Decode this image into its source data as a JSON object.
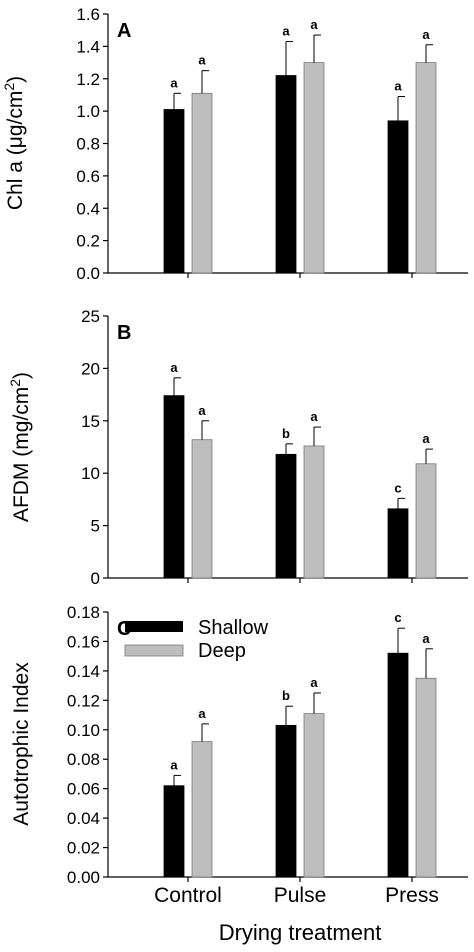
{
  "colors": {
    "shallow": "#000000",
    "deep": "#bdbdbd",
    "axis": "#000000"
  },
  "legend": {
    "placement": "top-left",
    "entries": [
      "Shallow",
      "Deep"
    ]
  },
  "shared": {
    "categories": [
      "Control",
      "Pulse",
      "Press"
    ],
    "xlabel": "Drying treatment"
  },
  "chart_data": [
    {
      "type": "bar",
      "panel": "A",
      "ylabel_text": "Chl a (",
      "ylabel_unit_base": "μg/cm",
      "ylabel_unit_exp": "2",
      "ylabel_close": ")",
      "ylim": [
        0,
        1.6
      ],
      "yticks": [
        "0.0",
        "0.2",
        "0.4",
        "0.6",
        "0.8",
        "1.0",
        "1.2",
        "1.4",
        "1.6"
      ],
      "categories": [
        "Control",
        "Pulse",
        "Press"
      ],
      "series": [
        {
          "name": "Shallow",
          "values": [
            1.01,
            1.22,
            0.94
          ],
          "errors": [
            0.1,
            0.21,
            0.15
          ],
          "labels": [
            "a",
            "a",
            "a"
          ]
        },
        {
          "name": "Deep",
          "values": [
            1.11,
            1.3,
            1.3
          ],
          "errors": [
            0.14,
            0.17,
            0.11
          ],
          "labels": [
            "a",
            "a",
            "a"
          ]
        }
      ]
    },
    {
      "type": "bar",
      "panel": "B",
      "ylabel_text": "AFDM (",
      "ylabel_unit_base": "mg/cm",
      "ylabel_unit_exp": "2",
      "ylabel_close": ")",
      "ylim": [
        0,
        25
      ],
      "yticks": [
        "0",
        "5",
        "10",
        "15",
        "20",
        "25"
      ],
      "categories": [
        "Control",
        "Pulse",
        "Press"
      ],
      "series": [
        {
          "name": "Shallow",
          "values": [
            17.4,
            11.8,
            6.6
          ],
          "errors": [
            1.7,
            1.0,
            1.0
          ],
          "labels": [
            "a",
            "b",
            "c"
          ]
        },
        {
          "name": "Deep",
          "values": [
            13.2,
            12.6,
            10.9
          ],
          "errors": [
            1.8,
            1.8,
            1.4
          ],
          "labels": [
            "a",
            "a",
            "a"
          ]
        }
      ]
    },
    {
      "type": "bar",
      "panel": "C",
      "ylabel_text": "Autotrophic Index",
      "ylabel_unit_base": "",
      "ylabel_unit_exp": "",
      "ylabel_close": "",
      "ylim": [
        0,
        0.18
      ],
      "yticks": [
        "0.00",
        "0.02",
        "0.04",
        "0.06",
        "0.08",
        "0.10",
        "0.12",
        "0.14",
        "0.16",
        "0.18"
      ],
      "categories": [
        "Control",
        "Pulse",
        "Press"
      ],
      "series": [
        {
          "name": "Shallow",
          "values": [
            0.062,
            0.103,
            0.152
          ],
          "errors": [
            0.007,
            0.013,
            0.017
          ],
          "labels": [
            "a",
            "b",
            "c"
          ]
        },
        {
          "name": "Deep",
          "values": [
            0.092,
            0.111,
            0.135
          ],
          "errors": [
            0.012,
            0.014,
            0.02
          ],
          "labels": [
            "a",
            "a",
            "a"
          ]
        }
      ]
    }
  ]
}
